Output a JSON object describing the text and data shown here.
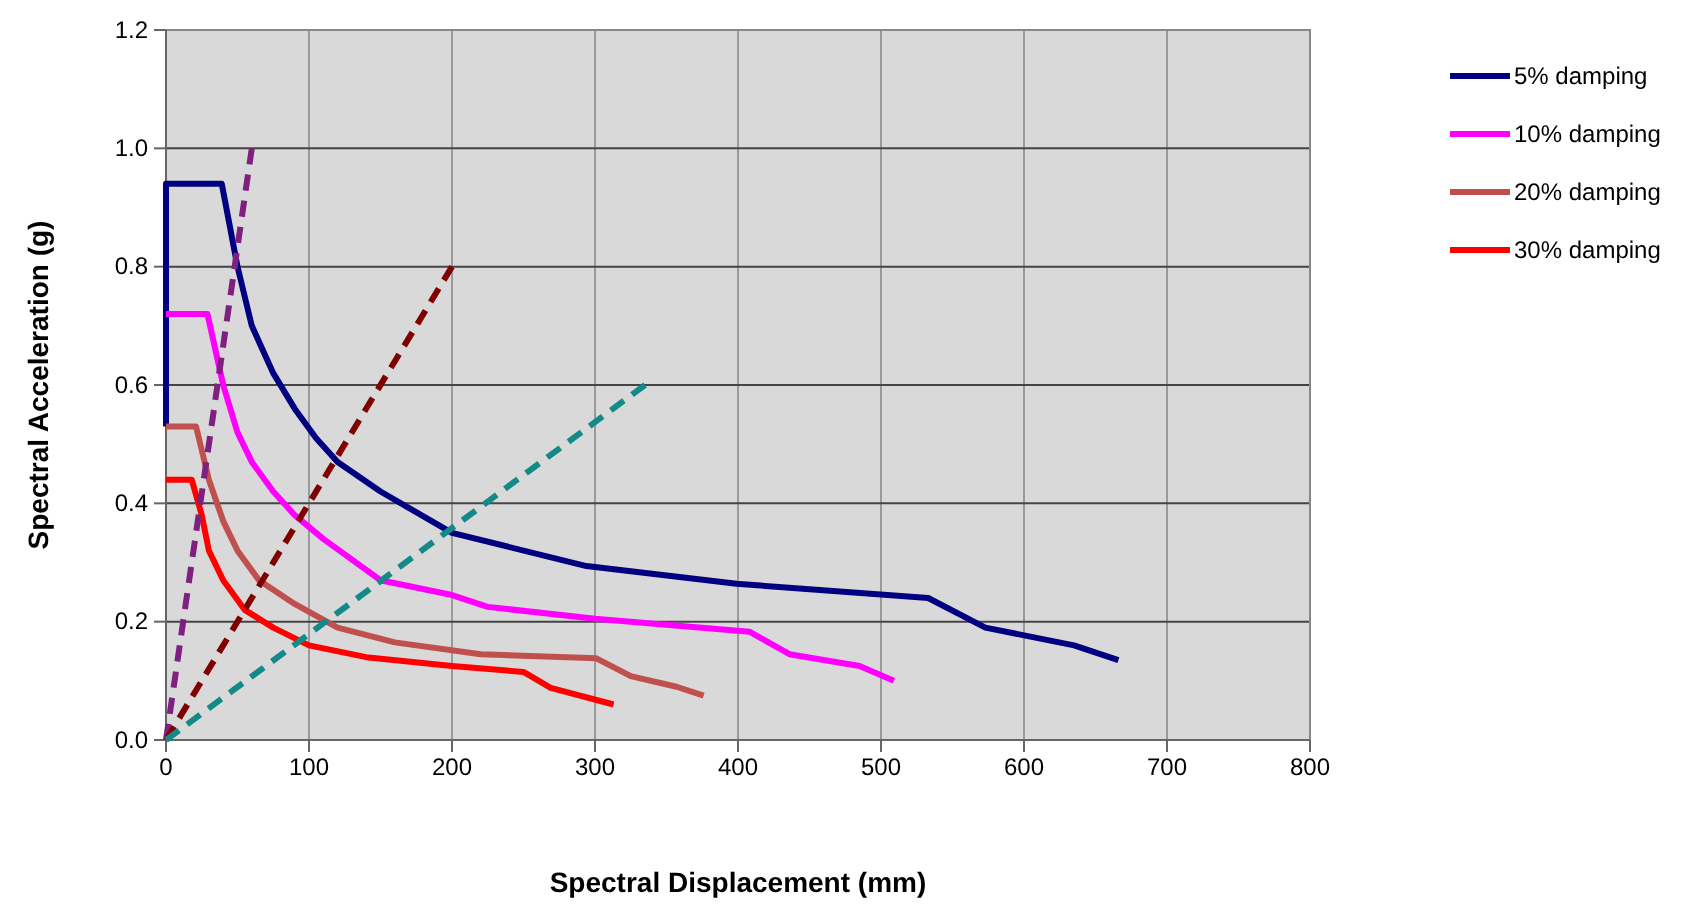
{
  "chart_data": {
    "type": "line",
    "xlabel": "Spectral Displacement  (mm)",
    "ylabel": "Spectral Acceleration  (g)",
    "xlim": [
      0,
      800
    ],
    "xticks": [
      0,
      100,
      200,
      300,
      400,
      500,
      600,
      700,
      800
    ],
    "ylim": [
      0,
      1.2
    ],
    "yticks": [
      {
        "value": 0,
        "label": "0.0"
      },
      {
        "value": 0.2,
        "label": "0.2"
      },
      {
        "value": 0.4,
        "label": "0.4"
      },
      {
        "value": 0.6,
        "label": "0.6"
      },
      {
        "value": 0.8,
        "label": "0.8"
      },
      {
        "value": 1,
        "label": "1.0"
      },
      {
        "value": 1.2,
        "label": "1.2"
      }
    ],
    "grid": true,
    "legend": "right",
    "marker": "none",
    "series": [
      {
        "name": "5% damping",
        "color": "#000080",
        "x": [
          0,
          0,
          39,
          50,
          60,
          75,
          90,
          105,
          120,
          150,
          200,
          294,
          399,
          533,
          573,
          635,
          666
        ],
        "values": [
          0.53,
          0.94,
          0.94,
          0.8,
          0.7,
          0.62,
          0.56,
          0.51,
          0.47,
          0.42,
          0.35,
          0.294,
          0.264,
          0.24,
          0.19,
          0.16,
          0.135
        ]
      },
      {
        "name": "10% damping",
        "color": "#ff00ff",
        "x": [
          0,
          29,
          40,
          50,
          60,
          75,
          90,
          110,
          150,
          200,
          225,
          300,
          408,
          436,
          485,
          509
        ],
        "values": [
          0.72,
          0.72,
          0.6,
          0.52,
          0.47,
          0.42,
          0.38,
          0.34,
          0.27,
          0.245,
          0.225,
          0.205,
          0.183,
          0.145,
          0.125,
          0.1
        ]
      },
      {
        "name": "20% damping",
        "color": "#c0504d",
        "x": [
          0,
          21,
          30,
          40,
          50,
          65,
          90,
          120,
          160,
          220,
          301,
          325,
          357,
          376
        ],
        "values": [
          0.53,
          0.53,
          0.44,
          0.37,
          0.32,
          0.27,
          0.23,
          0.19,
          0.165,
          0.145,
          0.138,
          0.108,
          0.09,
          0.075
        ]
      },
      {
        "name": "30% damping",
        "color": "#ff0000",
        "x": [
          0,
          18,
          25,
          30,
          40,
          55,
          75,
          100,
          140,
          200,
          250,
          269,
          313
        ],
        "values": [
          0.44,
          0.44,
          0.38,
          0.32,
          0.27,
          0.22,
          0.19,
          0.16,
          0.14,
          0.125,
          0.115,
          0.088,
          0.06
        ]
      },
      {
        "color": "#7f1f7f",
        "line_style": "dashed",
        "x": [
          0,
          60
        ],
        "values": [
          0,
          1.0
        ]
      },
      {
        "color": "#800000",
        "line_style": "dashed",
        "x": [
          0,
          200
        ],
        "values": [
          0,
          0.8
        ]
      },
      {
        "color": "#138a88",
        "line_style": "dashed",
        "x": [
          0,
          335
        ],
        "values": [
          0,
          0.6
        ]
      }
    ]
  }
}
